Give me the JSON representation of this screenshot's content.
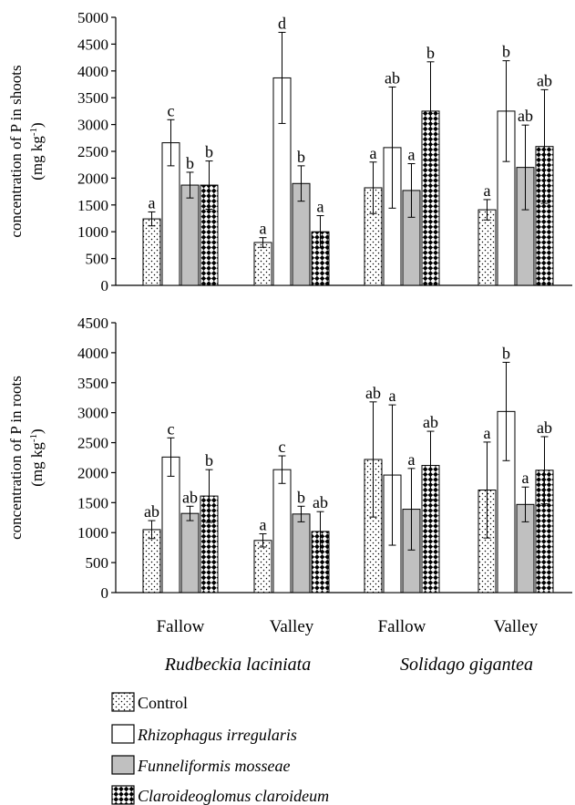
{
  "chart_data": [
    {
      "type": "bar",
      "ylabel": [
        "concentration of P in shoots",
        "(mg kg-1)"
      ],
      "ylim": [
        0,
        5000
      ],
      "yticks": [
        0,
        500,
        1000,
        1500,
        2000,
        2500,
        3000,
        3500,
        4000,
        4500,
        5000
      ],
      "categories": [
        "Fallow",
        "Valley",
        "Fallow",
        "Valley"
      ],
      "species": [
        "Rudbeckia laciniata",
        "Solidago gigantea"
      ],
      "series": [
        {
          "name": "Control",
          "values": [
            1240,
            800,
            1820,
            1410
          ],
          "errors": [
            130,
            90,
            480,
            190
          ],
          "letters": [
            "a",
            "a",
            "a",
            "a"
          ]
        },
        {
          "name": "Rhizophagus irregularis",
          "values": [
            2660,
            3870,
            2570,
            3250
          ],
          "errors": [
            430,
            850,
            1130,
            940
          ],
          "letters": [
            "c",
            "d",
            "ab",
            "b"
          ]
        },
        {
          "name": "Funneliformis mosseae",
          "values": [
            1870,
            1900,
            1770,
            2200
          ],
          "errors": [
            240,
            330,
            500,
            790
          ],
          "letters": [
            "b",
            "b",
            "a",
            "ab"
          ]
        },
        {
          "name": "Claroideoglomus claroideum",
          "values": [
            1870,
            1000,
            3250,
            2590
          ],
          "errors": [
            450,
            300,
            920,
            1060
          ],
          "letters": [
            "b",
            "a",
            "b",
            "ab"
          ]
        }
      ]
    },
    {
      "type": "bar",
      "ylabel": [
        "concentration of P in roots",
        "(mg kg-1)"
      ],
      "ylim": [
        0,
        4500
      ],
      "yticks": [
        0,
        500,
        1000,
        1500,
        2000,
        2500,
        3000,
        3500,
        4000,
        4500
      ],
      "categories": [
        "Fallow",
        "Valley",
        "Fallow",
        "Valley"
      ],
      "species": [
        "Rudbeckia laciniata",
        "Solidago gigantea"
      ],
      "series": [
        {
          "name": "Control",
          "values": [
            1050,
            870,
            2220,
            1710
          ],
          "errors": [
            150,
            110,
            960,
            800
          ],
          "letters": [
            "ab",
            "a",
            "ab",
            "a"
          ]
        },
        {
          "name": "Rhizophagus irregularis",
          "values": [
            2260,
            2050,
            1960,
            3020
          ],
          "errors": [
            320,
            230,
            1170,
            820
          ],
          "letters": [
            "c",
            "c",
            "a",
            "b"
          ]
        },
        {
          "name": "Funneliformis mosseae",
          "values": [
            1320,
            1310,
            1390,
            1470
          ],
          "errors": [
            120,
            130,
            680,
            290
          ],
          "letters": [
            "ab",
            "b",
            "a",
            "a"
          ]
        },
        {
          "name": "Claroideoglomus claroideum",
          "values": [
            1610,
            1020,
            2120,
            2040
          ],
          "errors": [
            440,
            330,
            570,
            560
          ],
          "letters": [
            "b",
            "ab",
            "ab",
            "ab"
          ]
        }
      ]
    }
  ],
  "legend": [
    {
      "label": "Control",
      "pattern": "dots"
    },
    {
      "label": "Rhizophagus irregularis",
      "pattern": "white"
    },
    {
      "label": "Funneliformis mosseae",
      "pattern": "gray"
    },
    {
      "label": "Claroideoglomus claroideum",
      "pattern": "diagonal-checker"
    }
  ],
  "colors": {
    "gray_fill": "#c0c0c0",
    "axis": "#000000"
  }
}
